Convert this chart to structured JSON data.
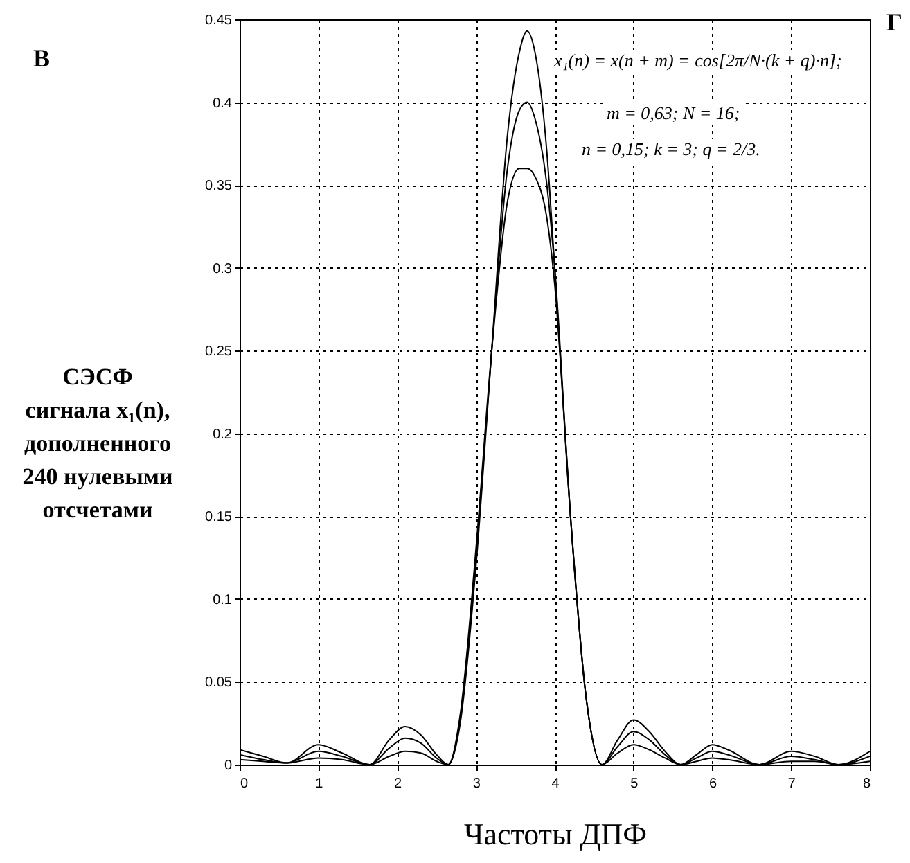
{
  "chart_data": {
    "type": "line",
    "xlabel": "Частоты ДПФ",
    "ylabel": "СЭСФ\nсигнала x₁(n),\nдополненного\n240 нулевыми\nотсчетами",
    "annotations": [
      "В",
      "Г",
      "x₁(n) = x(n + m) = cos[2π/N·(k + q)·n];",
      "m = 0,63; N = 16;",
      "n = 0,15; k = 3; q = 2/3."
    ],
    "series": [
      {
        "color": "#000000",
        "x": [
          0,
          0.3,
          0.6,
          1.0,
          1.3,
          1.65,
          1.9,
          2.1,
          2.3,
          2.5,
          2.65,
          2.8,
          3.0,
          3.2,
          3.4,
          3.55,
          3.65,
          3.75,
          3.9,
          4.0,
          4.2,
          4.4,
          4.6,
          4.8,
          5.0,
          5.2,
          5.4,
          5.6,
          5.8,
          6.0,
          6.2,
          6.6,
          7.0,
          7.3,
          7.6,
          8.0
        ],
        "values": [
          0.009,
          0.005,
          0.001,
          0.012,
          0.007,
          0.0,
          0.015,
          0.023,
          0.018,
          0.006,
          0.0,
          0.025,
          0.12,
          0.25,
          0.38,
          0.43,
          0.443,
          0.43,
          0.37,
          0.3,
          0.15,
          0.04,
          0.0,
          0.015,
          0.027,
          0.02,
          0.008,
          0.0,
          0.006,
          0.012,
          0.009,
          0.0,
          0.008,
          0.005,
          0.0,
          0.008
        ]
      },
      {
        "color": "#000000",
        "x": [
          0,
          0.3,
          0.6,
          1.0,
          1.3,
          1.65,
          1.9,
          2.1,
          2.3,
          2.5,
          2.65,
          2.8,
          3.0,
          3.2,
          3.4,
          3.55,
          3.65,
          3.75,
          3.9,
          4.0,
          4.2,
          4.4,
          4.6,
          4.8,
          5.0,
          5.2,
          5.4,
          5.6,
          5.8,
          6.0,
          6.2,
          6.6,
          7.0,
          7.3,
          7.6,
          8.0
        ],
        "values": [
          0.006,
          0.003,
          0.001,
          0.008,
          0.005,
          0.0,
          0.01,
          0.016,
          0.013,
          0.004,
          0.0,
          0.028,
          0.125,
          0.25,
          0.36,
          0.395,
          0.4,
          0.39,
          0.35,
          0.3,
          0.15,
          0.04,
          0.0,
          0.011,
          0.02,
          0.015,
          0.006,
          0.0,
          0.004,
          0.008,
          0.006,
          0.0,
          0.005,
          0.003,
          0.0,
          0.005
        ]
      },
      {
        "color": "#000000",
        "x": [
          0,
          0.3,
          0.6,
          1.0,
          1.3,
          1.65,
          1.9,
          2.1,
          2.3,
          2.5,
          2.65,
          2.8,
          3.0,
          3.2,
          3.4,
          3.55,
          3.65,
          3.75,
          3.9,
          4.0,
          4.2,
          4.4,
          4.6,
          4.8,
          5.0,
          5.2,
          5.4,
          5.6,
          5.8,
          6.0,
          6.2,
          6.6,
          7.0,
          7.3,
          7.6,
          8.0
        ],
        "values": [
          0.003,
          0.002,
          0.001,
          0.004,
          0.003,
          0.0,
          0.005,
          0.008,
          0.007,
          0.002,
          0.0,
          0.03,
          0.13,
          0.25,
          0.34,
          0.36,
          0.36,
          0.355,
          0.33,
          0.29,
          0.15,
          0.04,
          0.0,
          0.007,
          0.012,
          0.009,
          0.004,
          0.0,
          0.002,
          0.004,
          0.003,
          0.0,
          0.002,
          0.002,
          0.0,
          0.002
        ]
      }
    ],
    "xlim": [
      0,
      8
    ],
    "xticks": [
      0,
      1,
      2,
      3,
      4,
      5,
      6,
      7,
      8
    ],
    "ylim": [
      0,
      0.45
    ],
    "yticks": [
      0,
      0.05,
      0.1,
      0.15,
      0.2,
      0.25,
      0.3,
      0.35,
      0.4,
      0.45
    ],
    "grid": true,
    "marker": "none",
    "line_style": "solid"
  }
}
